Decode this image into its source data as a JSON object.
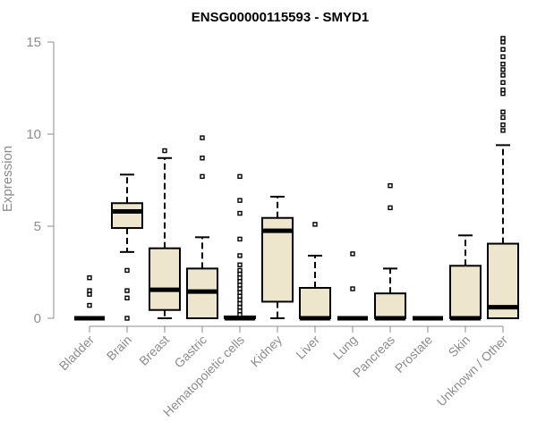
{
  "chart_data": {
    "type": "box",
    "title": "ENSG00000115593 - SMYD1",
    "xlabel": "",
    "ylabel": "Expression",
    "ylim": [
      0,
      15
    ],
    "yticks": [
      0,
      5,
      10,
      15
    ],
    "box_fill": "#ede6cd",
    "categories": [
      "Bladder",
      "Brain",
      "Breast",
      "Gastric",
      "Hematopoietic cells",
      "Kidney",
      "Liver",
      "Lung",
      "Pancreas",
      "Prostate",
      "Skin",
      "Unknown / Other"
    ],
    "boxes": [
      {
        "q1": 0,
        "median": 0,
        "q3": 0,
        "whisker_low": 0,
        "whisker_high": 0,
        "outliers": [
          0.7,
          1.3,
          1.5,
          2.2
        ]
      },
      {
        "q1": 4.9,
        "median": 5.8,
        "q3": 6.25,
        "whisker_low": 3.6,
        "whisker_high": 7.8,
        "outliers": [
          2.6,
          1.5,
          1.1,
          0
        ]
      },
      {
        "q1": 0.45,
        "median": 1.55,
        "q3": 3.8,
        "whisker_low": 0,
        "whisker_high": 8.7,
        "outliers": [
          9.1
        ]
      },
      {
        "q1": 0,
        "median": 1.45,
        "q3": 2.7,
        "whisker_low": 0,
        "whisker_high": 4.4,
        "outliers": [
          7.7,
          8.7,
          9.8
        ]
      },
      {
        "q1": 0,
        "median": 0,
        "q3": 0.1,
        "whisker_low": 0,
        "whisker_high": 0.1,
        "outliers": [
          0.2,
          0.4,
          0.6,
          0.8,
          1.0,
          1.2,
          1.4,
          1.6,
          1.8,
          2.0,
          2.2,
          2.4,
          2.6,
          2.9,
          3.4,
          4.3,
          5.7,
          6.4,
          7.7
        ]
      },
      {
        "q1": 0.9,
        "median": 4.75,
        "q3": 5.45,
        "whisker_low": 0,
        "whisker_high": 6.6,
        "outliers": []
      },
      {
        "q1": 0,
        "median": 0,
        "q3": 1.65,
        "whisker_low": 0,
        "whisker_high": 3.4,
        "outliers": [
          5.1
        ]
      },
      {
        "q1": 0,
        "median": 0,
        "q3": 0,
        "whisker_low": 0,
        "whisker_high": 0,
        "outliers": [
          1.6,
          3.5
        ]
      },
      {
        "q1": 0,
        "median": 0,
        "q3": 1.35,
        "whisker_low": 0,
        "whisker_high": 2.7,
        "outliers": [
          6.0,
          7.2
        ]
      },
      {
        "q1": 0,
        "median": 0,
        "q3": 0,
        "whisker_low": 0,
        "whisker_high": 0,
        "outliers": []
      },
      {
        "q1": 0,
        "median": 0,
        "q3": 2.85,
        "whisker_low": 0,
        "whisker_high": 4.5,
        "outliers": []
      },
      {
        "q1": 0,
        "median": 0.6,
        "q3": 4.05,
        "whisker_low": 0,
        "whisker_high": 9.4,
        "outliers": [
          10.2,
          10.5,
          10.9,
          11.2,
          12.2,
          12.4,
          12.8,
          13.2,
          13.5,
          13.8,
          14.2,
          14.6,
          15.0,
          15.2
        ]
      }
    ]
  }
}
